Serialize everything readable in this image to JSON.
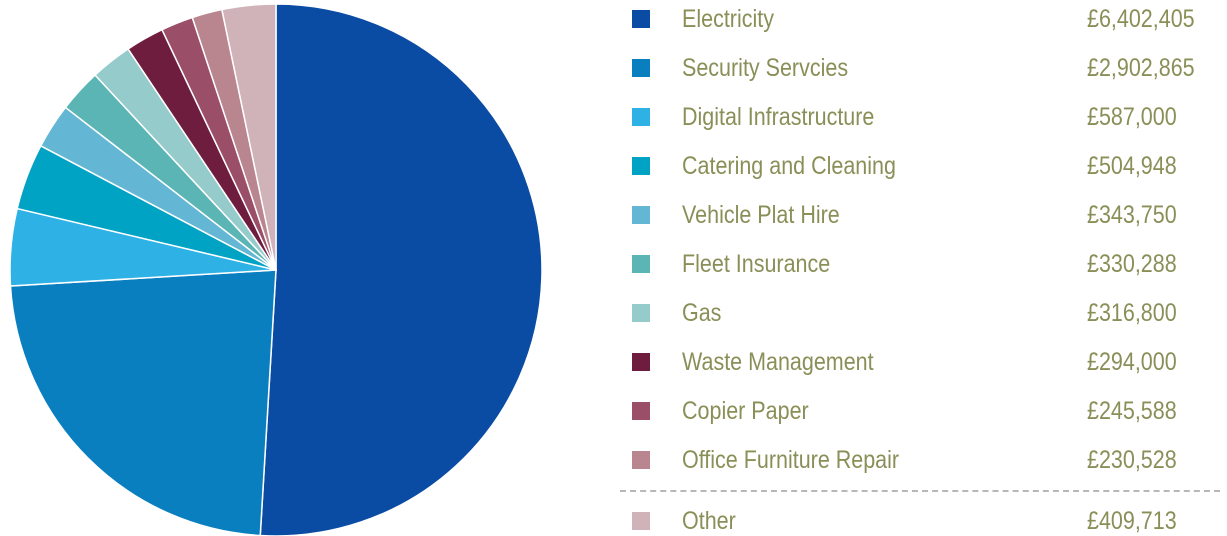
{
  "chart_data": {
    "type": "pie",
    "start_angle_deg": 0,
    "direction": "clockwise",
    "slices": [
      {
        "label": "Electricity",
        "value": 6402405,
        "display": "£6,402,405",
        "color": "#0a4ba3"
      },
      {
        "label": "Security Servcies",
        "value": 2902865,
        "display": "£2,902,865",
        "color": "#0a7fc0"
      },
      {
        "label": "Digital Infrastructure",
        "value": 587000,
        "display": "£587,000",
        "color": "#2eb2e6"
      },
      {
        "label": "Catering and Cleaning",
        "value": 504948,
        "display": "£504,948",
        "color": "#00a3c3"
      },
      {
        "label": "Vehicle Plat Hire",
        "value": 343750,
        "display": "£343,750",
        "color": "#63b7d4"
      },
      {
        "label": "Fleet Insurance",
        "value": 330288,
        "display": "£330,288",
        "color": "#5ab5b4"
      },
      {
        "label": "Gas",
        "value": 316800,
        "display": "£316,800",
        "color": "#96cbcc"
      },
      {
        "label": "Waste Management",
        "value": 294000,
        "display": "£294,000",
        "color": "#6f1d3f"
      },
      {
        "label": "Copier Paper",
        "value": 245588,
        "display": "£245,588",
        "color": "#9a4e68"
      },
      {
        "label": "Office Furniture Repair",
        "value": 230528,
        "display": "£230,528",
        "color": "#b9858f"
      },
      {
        "label": "Other",
        "value": 409713,
        "display": "£409,713",
        "color": "#cfb3b9"
      }
    ]
  }
}
